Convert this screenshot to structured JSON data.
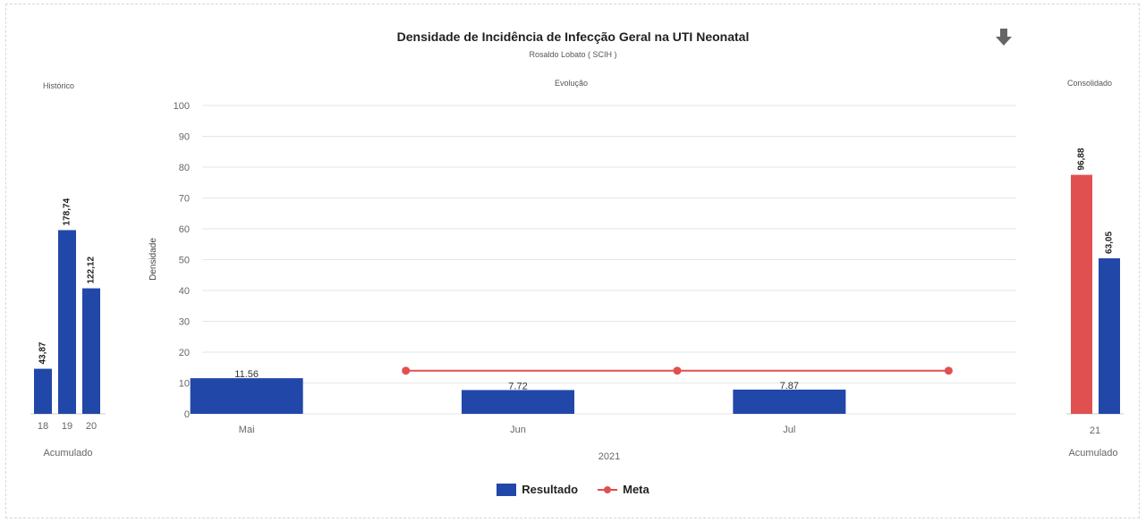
{
  "header": {
    "title": "Densidade de Incidência de Infecção Geral na UTI Neonatal",
    "subtitle": "Rosaldo Lobato ( SCIH )"
  },
  "icons": {
    "download": "download-arrow-icon"
  },
  "colors": {
    "result": "#2148a8",
    "meta": "#e05050",
    "consolidado_meta_bar": "#e05050"
  },
  "legend": {
    "resultado_label": "Resultado",
    "meta_label": "Meta"
  },
  "chart_data": [
    {
      "type": "bar",
      "title": "Histórico",
      "categories": [
        "18",
        "19",
        "20"
      ],
      "values": [
        43.87,
        178.74,
        122.12
      ],
      "value_labels": [
        "43,87",
        "178,74",
        "122,12"
      ],
      "xlabel": "Acumulado",
      "ylim": [
        0,
        300
      ]
    },
    {
      "type": "bar",
      "title": "Evolução",
      "categories": [
        "Mai",
        "Jun",
        "Jul"
      ],
      "xlabel": "2021",
      "ylabel": "Densidade",
      "ylim": [
        0,
        100
      ],
      "yticks": [
        0,
        10,
        20,
        30,
        40,
        50,
        60,
        70,
        80,
        90,
        100
      ],
      "grid": true,
      "legend": "bottom",
      "series": [
        {
          "name": "Resultado",
          "type": "bar",
          "values": [
            11.56,
            7.72,
            7.87
          ],
          "value_labels": [
            "11.56",
            "7.72",
            "7.87"
          ]
        },
        {
          "name": "Meta",
          "type": "line",
          "values": [
            14,
            14,
            14
          ]
        }
      ]
    },
    {
      "type": "bar",
      "title": "Consolidado",
      "categories": [
        "21"
      ],
      "xlabel": "Acumulado",
      "ylim": [
        0,
        125
      ],
      "series": [
        {
          "name": "Meta",
          "values": [
            96.88
          ],
          "value_labels": [
            "96,88"
          ]
        },
        {
          "name": "Resultado",
          "values": [
            63.05
          ],
          "value_labels": [
            "63,05"
          ]
        }
      ]
    }
  ]
}
